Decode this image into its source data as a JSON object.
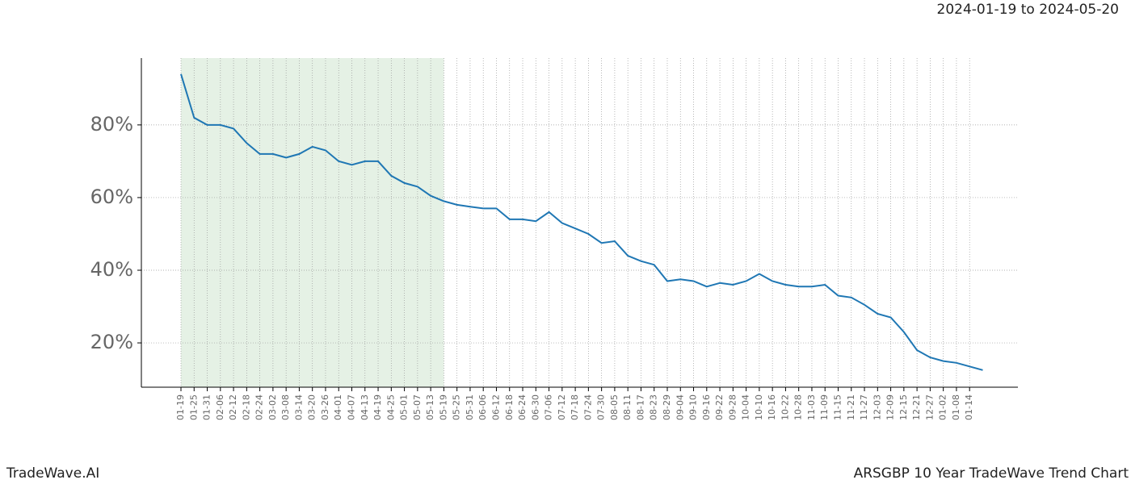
{
  "header": "2024-01-19 to 2024-05-20",
  "footer_left": "TradeWave.AI",
  "footer_right": "ARSGBP 10 Year TradeWave Trend Chart",
  "chart_data": {
    "type": "line",
    "categories": [
      "01-19",
      "01-25",
      "01-31",
      "02-06",
      "02-12",
      "02-18",
      "02-24",
      "03-02",
      "03-08",
      "03-14",
      "03-20",
      "03-26",
      "04-01",
      "04-07",
      "04-13",
      "04-19",
      "04-25",
      "05-01",
      "05-07",
      "05-13",
      "05-19",
      "05-25",
      "05-31",
      "06-06",
      "06-12",
      "06-18",
      "06-24",
      "06-30",
      "07-06",
      "07-12",
      "07-18",
      "07-24",
      "07-30",
      "08-05",
      "08-11",
      "08-17",
      "08-23",
      "08-29",
      "09-04",
      "09-10",
      "09-16",
      "09-22",
      "09-28",
      "10-04",
      "10-10",
      "10-16",
      "10-22",
      "10-28",
      "11-03",
      "11-09",
      "11-15",
      "11-21",
      "11-27",
      "12-03",
      "12-09",
      "12-15",
      "12-21",
      "12-27",
      "01-02",
      "01-08",
      "01-14",
      null
    ],
    "series": [
      {
        "color": "#1f77b4",
        "values": [
          94,
          82,
          80,
          80,
          79,
          75,
          72,
          72,
          71,
          72,
          74,
          73,
          70,
          69,
          70,
          70,
          66,
          64,
          63,
          60.5,
          59,
          58,
          57.5,
          57,
          57,
          54,
          54,
          53.5,
          56,
          53,
          51.5,
          50,
          47.5,
          48,
          44,
          42.5,
          41.5,
          37,
          37.5,
          37,
          35.5,
          36.5,
          36,
          37,
          39,
          37,
          36,
          35.5,
          35.5,
          36,
          33,
          32.5,
          30.5,
          28,
          27,
          23,
          18,
          16,
          15,
          14.5,
          13.5,
          12.5
        ]
      }
    ],
    "ylim": [
      7.8,
      98.4
    ],
    "yticks": [
      {
        "value": 20,
        "label": "20%"
      },
      {
        "value": 40,
        "label": "40%"
      },
      {
        "value": 60,
        "label": "60%"
      },
      {
        "value": 80,
        "label": "80%"
      }
    ],
    "shaded_range": [
      "01-19",
      "05-19"
    ],
    "shade_color": "#e5f1e5",
    "grid": true
  }
}
